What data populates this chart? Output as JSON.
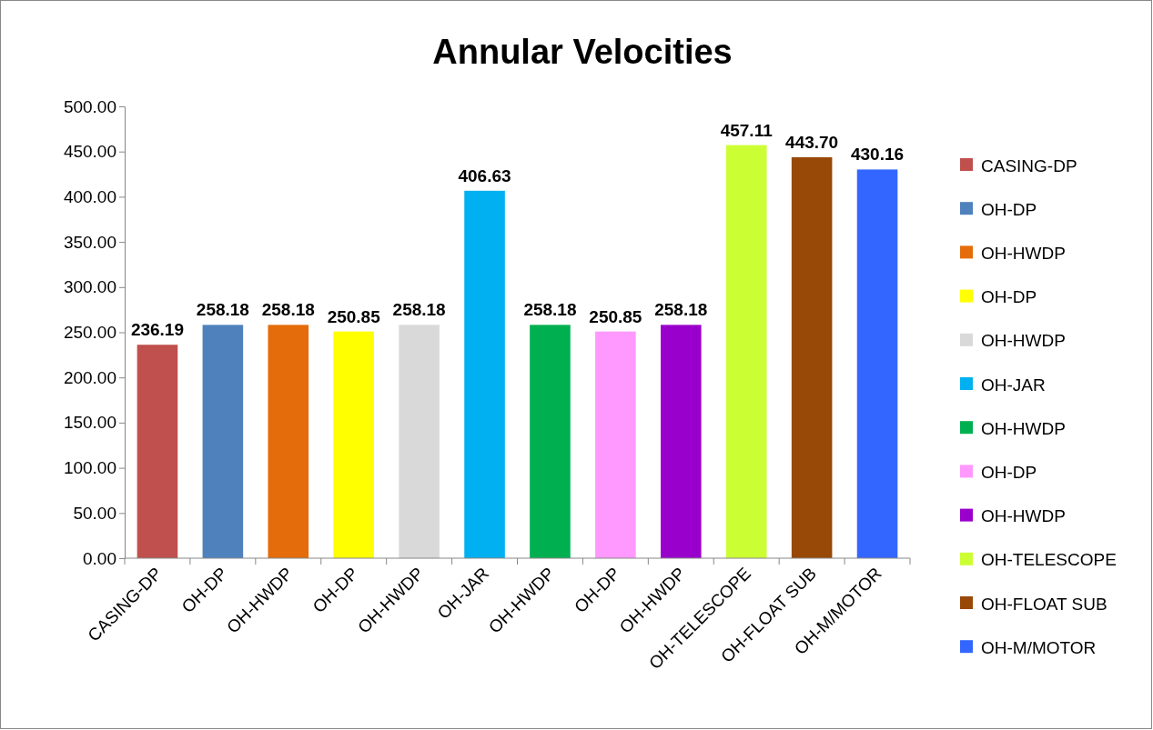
{
  "chart_data": {
    "type": "bar",
    "title": "Annular Velocities",
    "categories": [
      "CASING-DP",
      "OH-DP",
      "OH-HWDP",
      "OH-DP",
      "OH-HWDP",
      "OH-JAR",
      "OH-HWDP",
      "OH-DP",
      "OH-HWDP",
      "OH-TELESCOPE",
      "OH-FLOAT SUB",
      "OH-M/MOTOR"
    ],
    "stacked": true,
    "series": [
      {
        "name": "CASING-DP",
        "color": "#c0504d",
        "values": [
          236.19,
          null,
          null,
          null,
          null,
          null,
          null,
          null,
          null,
          null,
          null,
          null
        ],
        "value_labels": [
          "236.19",
          null,
          null,
          null,
          null,
          null,
          null,
          null,
          null,
          null,
          null,
          null
        ]
      },
      {
        "name": "OH-DP",
        "color": "#4f81bd",
        "values": [
          null,
          258.18,
          null,
          null,
          null,
          null,
          null,
          null,
          null,
          null,
          null,
          null
        ],
        "value_labels": [
          null,
          "258.18",
          null,
          null,
          null,
          null,
          null,
          null,
          null,
          null,
          null,
          null
        ]
      },
      {
        "name": "OH-HWDP",
        "color": "#e46c0a",
        "values": [
          null,
          null,
          258.18,
          null,
          null,
          null,
          null,
          null,
          null,
          null,
          null,
          null
        ],
        "value_labels": [
          null,
          null,
          "258.18",
          null,
          null,
          null,
          null,
          null,
          null,
          null,
          null,
          null
        ]
      },
      {
        "name": "OH-DP",
        "color": "#ffff00",
        "values": [
          null,
          null,
          null,
          250.85,
          null,
          null,
          null,
          null,
          null,
          null,
          null,
          null
        ],
        "value_labels": [
          null,
          null,
          null,
          "250.85",
          null,
          null,
          null,
          null,
          null,
          null,
          null,
          null
        ]
      },
      {
        "name": "OH-HWDP",
        "color": "#d9d9d9",
        "values": [
          null,
          null,
          null,
          null,
          258.18,
          null,
          null,
          null,
          null,
          null,
          null,
          null
        ],
        "value_labels": [
          null,
          null,
          null,
          null,
          "258.18",
          null,
          null,
          null,
          null,
          null,
          null,
          null
        ]
      },
      {
        "name": "OH-JAR",
        "color": "#00b0f0",
        "values": [
          null,
          null,
          null,
          null,
          null,
          406.63,
          null,
          null,
          null,
          null,
          null,
          null
        ],
        "value_labels": [
          null,
          null,
          null,
          null,
          null,
          "406.63",
          null,
          null,
          null,
          null,
          null,
          null
        ]
      },
      {
        "name": "OH-HWDP",
        "color": "#00b050",
        "values": [
          null,
          null,
          null,
          null,
          null,
          null,
          258.18,
          null,
          null,
          null,
          null,
          null
        ],
        "value_labels": [
          null,
          null,
          null,
          null,
          null,
          null,
          "258.18",
          null,
          null,
          null,
          null,
          null
        ]
      },
      {
        "name": "OH-DP",
        "color": "#ff99ff",
        "values": [
          null,
          null,
          null,
          null,
          null,
          null,
          null,
          250.85,
          null,
          null,
          null,
          null
        ],
        "value_labels": [
          null,
          null,
          null,
          null,
          null,
          null,
          null,
          "250.85",
          null,
          null,
          null,
          null
        ]
      },
      {
        "name": "OH-HWDP",
        "color": "#9900cc",
        "values": [
          null,
          null,
          null,
          null,
          null,
          null,
          null,
          null,
          258.18,
          null,
          null,
          null
        ],
        "value_labels": [
          null,
          null,
          null,
          null,
          null,
          null,
          null,
          null,
          "258.18",
          null,
          null,
          null
        ]
      },
      {
        "name": "OH-TELESCOPE",
        "color": "#ccff33",
        "values": [
          null,
          null,
          null,
          null,
          null,
          null,
          null,
          null,
          null,
          457.11,
          null,
          null
        ],
        "value_labels": [
          null,
          null,
          null,
          null,
          null,
          null,
          null,
          null,
          null,
          "457.11",
          null,
          null
        ]
      },
      {
        "name": "OH-FLOAT SUB",
        "color": "#984807",
        "values": [
          null,
          null,
          null,
          null,
          null,
          null,
          null,
          null,
          null,
          null,
          443.7,
          null
        ],
        "value_labels": [
          null,
          null,
          null,
          null,
          null,
          null,
          null,
          null,
          null,
          null,
          "443.70",
          null
        ]
      },
      {
        "name": "OH-M/MOTOR",
        "color": "#3366ff",
        "values": [
          null,
          null,
          null,
          null,
          null,
          null,
          null,
          null,
          null,
          null,
          null,
          430.16
        ],
        "value_labels": [
          null,
          null,
          null,
          null,
          null,
          null,
          null,
          null,
          null,
          null,
          null,
          "430.16"
        ]
      }
    ],
    "ylim": [
      0,
      500
    ],
    "yticks": [
      {
        "value": 0,
        "label": "0.00"
      },
      {
        "value": 50,
        "label": "50.00"
      },
      {
        "value": 100,
        "label": "100.00"
      },
      {
        "value": 150,
        "label": "150.00"
      },
      {
        "value": 200,
        "label": "200.00"
      },
      {
        "value": 250,
        "label": "250.00"
      },
      {
        "value": 300,
        "label": "300.00"
      },
      {
        "value": 350,
        "label": "350.00"
      },
      {
        "value": 400,
        "label": "400.00"
      },
      {
        "value": 450,
        "label": "450.00"
      },
      {
        "value": 500,
        "label": "500.00"
      }
    ],
    "grid": false,
    "legend": "right"
  }
}
